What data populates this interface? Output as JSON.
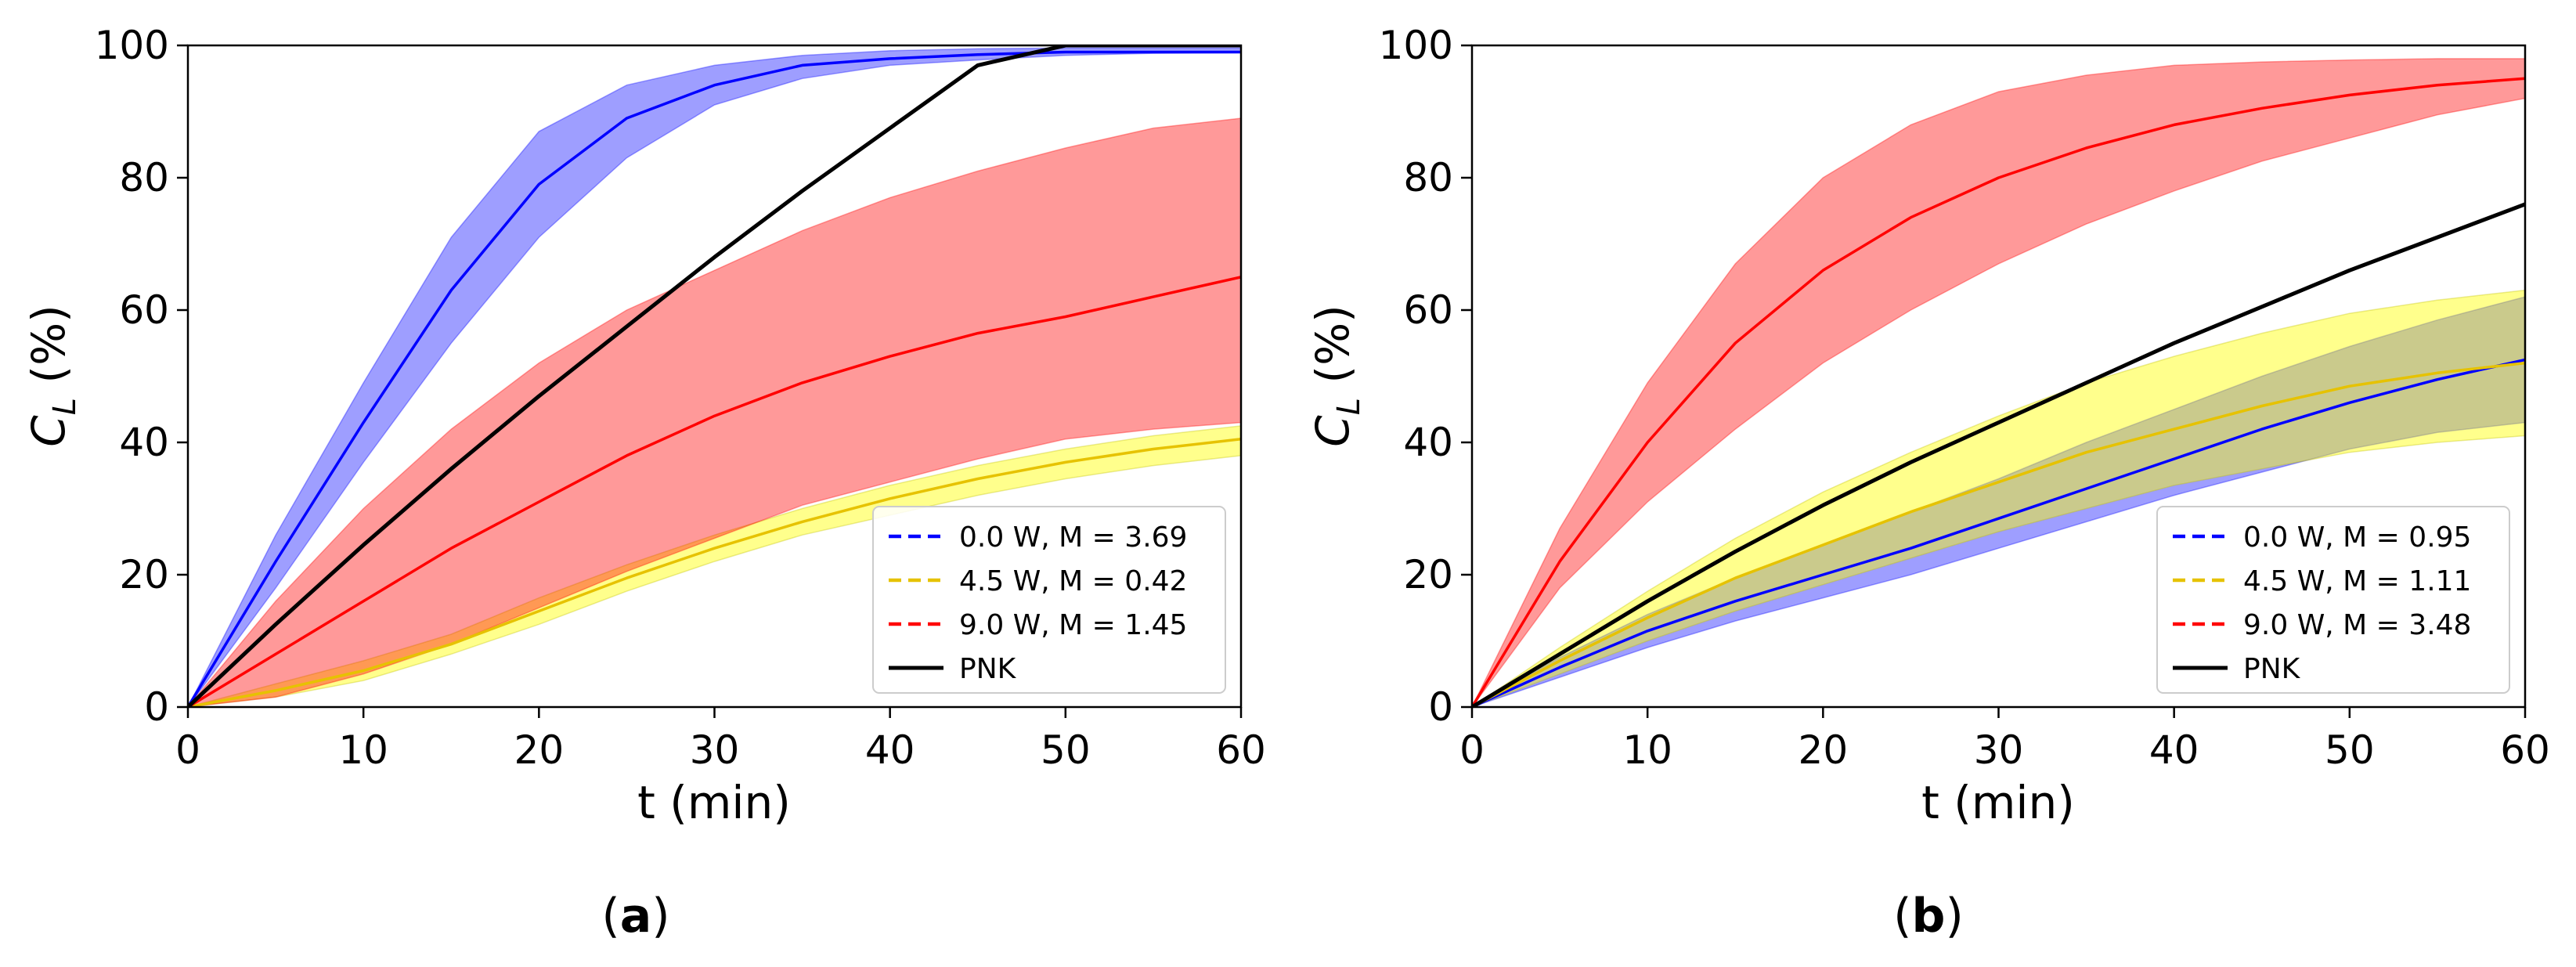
{
  "chart_data": [
    {
      "type": "line",
      "panel_label": "a",
      "xlabel": "t (min)",
      "ylabel_main": "C",
      "ylabel_sub": "L",
      "ylabel_tail": " (%)",
      "xlim": [
        0,
        60
      ],
      "ylim": [
        0,
        100
      ],
      "xticks": [
        "0",
        "10",
        "20",
        "30",
        "40",
        "50",
        "60"
      ],
      "yticks": [
        "0",
        "20",
        "40",
        "60",
        "80",
        "100"
      ],
      "x": [
        0,
        5,
        10,
        15,
        20,
        25,
        30,
        35,
        40,
        45,
        50,
        55,
        60
      ],
      "legend_position": "lower-right",
      "series": [
        {
          "name": "0.0 W, M = 3.69",
          "color": "#0000ff",
          "style": "dashed",
          "values": [
            0,
            22,
            43,
            63,
            79,
            89,
            94,
            97,
            98,
            98.6,
            99,
            99,
            99
          ],
          "band_lower": [
            0,
            18,
            37,
            55,
            71,
            83,
            91,
            95,
            97,
            97.8,
            98.5,
            98.8,
            98.9
          ],
          "band_upper": [
            0,
            26,
            49,
            71,
            87,
            94,
            97,
            98.5,
            99.2,
            99.5,
            99.6,
            99.6,
            99.6
          ]
        },
        {
          "name": "4.5 W, M = 0.42",
          "color": "#bfbf00",
          "style": "dashed",
          "values": [
            0,
            2.5,
            5.5,
            9.5,
            14.5,
            19.5,
            24,
            28,
            31.5,
            34.5,
            37,
            39,
            40.5
          ],
          "band_lower": [
            0,
            1.5,
            4,
            8,
            12.5,
            17.5,
            22,
            26,
            29,
            32,
            34.5,
            36.5,
            38
          ],
          "band_upper": [
            0,
            3.5,
            7,
            11,
            16.5,
            21.5,
            26,
            30,
            33.5,
            36.5,
            39,
            41,
            42.5
          ]
        },
        {
          "name": "9.0 W, M = 1.45",
          "color": "#ff0000",
          "style": "dashed",
          "values": [
            0,
            8,
            16,
            24,
            31,
            38,
            44,
            49,
            53,
            56.5,
            59,
            62,
            65
          ],
          "band_lower": [
            0,
            1.5,
            5,
            9.5,
            15,
            20.5,
            25.5,
            30.5,
            34,
            37.5,
            40.5,
            42,
            43
          ],
          "band_upper": [
            0,
            16,
            30,
            42,
            52,
            60,
            66,
            72,
            77,
            81,
            84.5,
            87.5,
            89
          ]
        },
        {
          "name": "PNK",
          "color": "#000000",
          "style": "solid",
          "values": [
            0,
            12.5,
            24.5,
            36,
            47,
            57.5,
            68,
            78,
            87.5,
            97,
            100,
            100,
            100
          ]
        }
      ]
    },
    {
      "type": "line",
      "panel_label": "b",
      "xlabel": "t (min)",
      "ylabel_main": "C",
      "ylabel_sub": "L",
      "ylabel_tail": " (%)",
      "xlim": [
        0,
        60
      ],
      "ylim": [
        0,
        100
      ],
      "xticks": [
        "0",
        "10",
        "20",
        "30",
        "40",
        "50",
        "60"
      ],
      "yticks": [
        "0",
        "20",
        "40",
        "60",
        "80",
        "100"
      ],
      "x": [
        0,
        5,
        10,
        15,
        20,
        25,
        30,
        35,
        40,
        45,
        50,
        55,
        60
      ],
      "legend_position": "lower-right",
      "series": [
        {
          "name": "0.0 W, M = 0.95",
          "color": "#0000ff",
          "style": "dashed",
          "values": [
            0,
            6,
            11.5,
            16,
            20,
            24,
            28.5,
            33,
            37.5,
            42,
            46,
            49.5,
            52.5
          ],
          "band_lower": [
            0,
            4.5,
            9,
            13,
            16.5,
            20,
            24,
            28,
            32,
            35.5,
            39,
            41.5,
            43
          ],
          "band_upper": [
            0,
            7.5,
            14,
            19.5,
            24.5,
            29.5,
            34.5,
            40,
            45,
            50,
            54.5,
            58.5,
            62
          ]
        },
        {
          "name": "4.5 W, M = 1.11",
          "color": "#bfbf00",
          "style": "dashed",
          "values": [
            0,
            7,
            13.5,
            19.5,
            24.5,
            29.5,
            34,
            38.5,
            42,
            45.5,
            48.5,
            50.5,
            52
          ],
          "band_lower": [
            0,
            5,
            10,
            14.5,
            18.5,
            22.5,
            26.5,
            30,
            33.5,
            36,
            38.5,
            40,
            41
          ],
          "band_upper": [
            0,
            9,
            17.5,
            25.5,
            32.5,
            38.5,
            44,
            49,
            53,
            56.5,
            59.5,
            61.5,
            63
          ]
        },
        {
          "name": "9.0 W, M = 3.48",
          "color": "#ff0000",
          "style": "dashed",
          "values": [
            0,
            22,
            40,
            55,
            66,
            74,
            80,
            84.5,
            88,
            90.5,
            92.5,
            94,
            95
          ],
          "band_lower": [
            0,
            18,
            31,
            42,
            52,
            60,
            67,
            73,
            78,
            82.5,
            86,
            89.5,
            92
          ],
          "band_upper": [
            0,
            27,
            49,
            67,
            80,
            88,
            93,
            95.5,
            97,
            97.5,
            97.8,
            98,
            98
          ]
        },
        {
          "name": "PNK",
          "color": "#000000",
          "style": "solid",
          "values": [
            0,
            8,
            16,
            23.5,
            30.5,
            37,
            43,
            49,
            55,
            60.5,
            66,
            71,
            76
          ]
        }
      ]
    }
  ]
}
